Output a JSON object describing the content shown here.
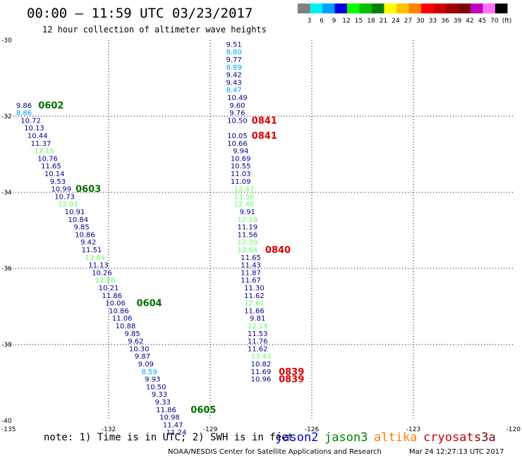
{
  "header": {
    "title": "00:00 – 11:59 UTC 03/23/2017",
    "subtitle": "12 hour collection of altimeter wave heights"
  },
  "legend": {
    "colors": [
      "#808080",
      "#00f0f0",
      "#00a0ff",
      "#0000e0",
      "#00ff00",
      "#00c000",
      "#008000",
      "#ffff00",
      "#ffc000",
      "#ff8000",
      "#ff0000",
      "#d00000",
      "#a00000",
      "#800000",
      "#c000c0",
      "#ff70ff",
      "#000000"
    ],
    "labels": [
      "3",
      "6",
      "9",
      "12",
      "15",
      "18",
      "21",
      "24",
      "27",
      "30",
      "33",
      "36",
      "39",
      "42",
      "45",
      "70",
      "(ft)"
    ]
  },
  "note": "note: 1) Time is in UTC; 2) SWH is in feet",
  "satellites": [
    {
      "name": "jason2",
      "color": "#0000cc"
    },
    {
      "name": "jason3",
      "color": "#008000"
    },
    {
      "name": "altika",
      "color": "#ff8000"
    },
    {
      "name": "cryosat",
      "color": "#cc0000"
    },
    {
      "name": "s3a",
      "color": "#800000"
    }
  ],
  "footer": {
    "center": "NOAA/NESDIS Center for Satellite Applications and Research",
    "timestamp": "Mar 24 12:27:13 UTC 2017"
  },
  "chart_data": {
    "type": "scatter",
    "title": "00:00 – 11:59 UTC 03/23/2017",
    "subtitle": "12 hour collection of altimeter wave heights",
    "xlim": [
      -135,
      -120
    ],
    "ylim": [
      -40,
      -30
    ],
    "xticks": [
      "-135",
      "-132",
      "-129",
      "-126",
      "-123",
      "-120"
    ],
    "yticks": [
      "-30",
      "-32",
      "-34",
      "-36",
      "-38",
      "-40"
    ],
    "grid": true,
    "tracks": [
      {
        "satellite": "jason3",
        "points": [
          {
            "lon": -134.5,
            "lat": -31.7,
            "swh": "9.86",
            "color": "#00008b"
          },
          {
            "lon": -134.5,
            "lat": -31.9,
            "swh": "8.86",
            "color": "#00a0ff"
          },
          {
            "lon": -134.3,
            "lat": -32.1,
            "swh": "10.72",
            "color": "#00008b"
          },
          {
            "lon": -134.2,
            "lat": -32.3,
            "swh": "10.13",
            "color": "#00008b"
          },
          {
            "lon": -134.1,
            "lat": -32.5,
            "swh": "10.44",
            "color": "#00008b"
          },
          {
            "lon": -134.0,
            "lat": -32.7,
            "swh": "11.37",
            "color": "#00008b"
          },
          {
            "lon": -133.9,
            "lat": -32.9,
            "swh": "12.16",
            "color": "#60ff60"
          },
          {
            "lon": -133.8,
            "lat": -33.1,
            "swh": "10.76",
            "color": "#00008b"
          },
          {
            "lon": -133.7,
            "lat": -33.3,
            "swh": "11.65",
            "color": "#00008b"
          },
          {
            "lon": -133.6,
            "lat": -33.5,
            "swh": "10.14",
            "color": "#00008b"
          },
          {
            "lon": -133.5,
            "lat": -33.7,
            "swh": "9.53",
            "color": "#00008b"
          },
          {
            "lon": -133.4,
            "lat": -33.9,
            "swh": "10.99",
            "color": "#00008b"
          },
          {
            "lon": -133.3,
            "lat": -34.1,
            "swh": "10.73",
            "color": "#00008b"
          },
          {
            "lon": -133.2,
            "lat": -34.3,
            "swh": "12.01",
            "color": "#60ff60"
          },
          {
            "lon": -133.0,
            "lat": -34.5,
            "swh": "10.91",
            "color": "#00008b"
          },
          {
            "lon": -132.9,
            "lat": -34.7,
            "swh": "10.84",
            "color": "#00008b"
          },
          {
            "lon": -132.8,
            "lat": -34.9,
            "swh": "9.85",
            "color": "#00008b"
          },
          {
            "lon": -132.7,
            "lat": -35.1,
            "swh": "10.86",
            "color": "#00008b"
          },
          {
            "lon": -132.6,
            "lat": -35.3,
            "swh": "9.42",
            "color": "#00008b"
          },
          {
            "lon": -132.5,
            "lat": -35.5,
            "swh": "11.51",
            "color": "#00008b"
          },
          {
            "lon": -132.4,
            "lat": -35.7,
            "swh": "13.04",
            "color": "#60ff60"
          },
          {
            "lon": -132.3,
            "lat": -35.9,
            "swh": "11.13",
            "color": "#00008b"
          },
          {
            "lon": -132.2,
            "lat": -36.1,
            "swh": "10.26",
            "color": "#00008b"
          },
          {
            "lon": -132.1,
            "lat": -36.3,
            "swh": "12.86",
            "color": "#60ff60"
          },
          {
            "lon": -132.0,
            "lat": -36.5,
            "swh": "10.21",
            "color": "#00008b"
          },
          {
            "lon": -131.9,
            "lat": -36.7,
            "swh": "11.86",
            "color": "#00008b"
          },
          {
            "lon": -131.8,
            "lat": -36.9,
            "swh": "10.06",
            "color": "#00008b"
          },
          {
            "lon": -131.7,
            "lat": -37.1,
            "swh": "10.86",
            "color": "#00008b"
          },
          {
            "lon": -131.6,
            "lat": -37.3,
            "swh": "11.06",
            "color": "#00008b"
          },
          {
            "lon": -131.5,
            "lat": -37.5,
            "swh": "10.88",
            "color": "#00008b"
          },
          {
            "lon": -131.3,
            "lat": -37.7,
            "swh": "9.85",
            "color": "#00008b"
          },
          {
            "lon": -131.2,
            "lat": -37.9,
            "swh": "9.62",
            "color": "#00008b"
          },
          {
            "lon": -131.1,
            "lat": -38.1,
            "swh": "10.30",
            "color": "#00008b"
          },
          {
            "lon": -131.0,
            "lat": -38.3,
            "swh": "9.87",
            "color": "#00008b"
          },
          {
            "lon": -130.9,
            "lat": -38.5,
            "swh": "9.09",
            "color": "#00008b"
          },
          {
            "lon": -130.8,
            "lat": -38.7,
            "swh": "8.59",
            "color": "#00a0ff"
          },
          {
            "lon": -130.7,
            "lat": -38.9,
            "swh": "9.93",
            "color": "#00008b"
          },
          {
            "lon": -130.6,
            "lat": -39.1,
            "swh": "10.50",
            "color": "#00008b"
          },
          {
            "lon": -130.5,
            "lat": -39.3,
            "swh": "9.33",
            "color": "#00008b"
          },
          {
            "lon": -130.4,
            "lat": -39.5,
            "swh": "9.33",
            "color": "#00008b"
          },
          {
            "lon": -130.3,
            "lat": -39.7,
            "swh": "11.86",
            "color": "#00008b"
          },
          {
            "lon": -130.2,
            "lat": -39.9,
            "swh": "10.98",
            "color": "#00008b"
          },
          {
            "lon": -130.1,
            "lat": -40.1,
            "swh": "11.47",
            "color": "#00008b"
          },
          {
            "lon": -130.0,
            "lat": -40.3,
            "swh": "11.24",
            "color": "#00008b"
          }
        ]
      },
      {
        "satellite": "cryosat",
        "points": [
          {
            "lon": -128.3,
            "lat": -30.1,
            "swh": "9.51",
            "color": "#00008b"
          },
          {
            "lon": -128.3,
            "lat": -30.3,
            "swh": "8.80",
            "color": "#00a0ff"
          },
          {
            "lon": -128.3,
            "lat": -30.5,
            "swh": "9.77",
            "color": "#00008b"
          },
          {
            "lon": -128.3,
            "lat": -30.7,
            "swh": "8.89",
            "color": "#00a0ff"
          },
          {
            "lon": -128.3,
            "lat": -30.9,
            "swh": "9.42",
            "color": "#00008b"
          },
          {
            "lon": -128.3,
            "lat": -31.1,
            "swh": "9.43",
            "color": "#00008b"
          },
          {
            "lon": -128.3,
            "lat": -31.3,
            "swh": "8.47",
            "color": "#00a0ff"
          },
          {
            "lon": -128.2,
            "lat": -31.5,
            "swh": "10.49",
            "color": "#00008b"
          },
          {
            "lon": -128.2,
            "lat": -31.7,
            "swh": "9.60",
            "color": "#00008b"
          },
          {
            "lon": -128.2,
            "lat": -31.9,
            "swh": "9.76",
            "color": "#00008b"
          },
          {
            "lon": -128.2,
            "lat": -32.1,
            "swh": "10.50",
            "color": "#00008b"
          },
          {
            "lon": -128.2,
            "lat": -32.5,
            "swh": "10.05",
            "color": "#00008b"
          },
          {
            "lon": -128.2,
            "lat": -32.7,
            "swh": "10.66",
            "color": "#00008b"
          },
          {
            "lon": -128.1,
            "lat": -32.9,
            "swh": "9.94",
            "color": "#00008b"
          },
          {
            "lon": -128.1,
            "lat": -33.1,
            "swh": "10.69",
            "color": "#00008b"
          },
          {
            "lon": -128.1,
            "lat": -33.3,
            "swh": "10.55",
            "color": "#00008b"
          },
          {
            "lon": -128.1,
            "lat": -33.5,
            "swh": "11.03",
            "color": "#00008b"
          },
          {
            "lon": -128.1,
            "lat": -33.7,
            "swh": "11.09",
            "color": "#00008b"
          },
          {
            "lon": -128.0,
            "lat": -33.9,
            "swh": "12.47",
            "color": "#60ff60"
          },
          {
            "lon": -128.0,
            "lat": -34.1,
            "swh": "13.56",
            "color": "#60ff60"
          },
          {
            "lon": -128.0,
            "lat": -34.3,
            "swh": "12.46",
            "color": "#60ff60"
          },
          {
            "lon": -127.9,
            "lat": -34.5,
            "swh": "9.91",
            "color": "#00008b"
          },
          {
            "lon": -127.9,
            "lat": -34.7,
            "swh": "12.18",
            "color": "#60ff60"
          },
          {
            "lon": -127.9,
            "lat": -34.9,
            "swh": "11.19",
            "color": "#00008b"
          },
          {
            "lon": -127.9,
            "lat": -35.1,
            "swh": "11.56",
            "color": "#00008b"
          },
          {
            "lon": -127.9,
            "lat": -35.3,
            "swh": "12.39",
            "color": "#60ff60"
          },
          {
            "lon": -127.9,
            "lat": -35.5,
            "swh": "13.64",
            "color": "#60ff60"
          },
          {
            "lon": -127.8,
            "lat": -35.7,
            "swh": "11.65",
            "color": "#00008b"
          },
          {
            "lon": -127.8,
            "lat": -35.9,
            "swh": "11.43",
            "color": "#00008b"
          },
          {
            "lon": -127.8,
            "lat": -36.1,
            "swh": "11.87",
            "color": "#00008b"
          },
          {
            "lon": -127.8,
            "lat": -36.3,
            "swh": "11.67",
            "color": "#00008b"
          },
          {
            "lon": -127.7,
            "lat": -36.5,
            "swh": "11.30",
            "color": "#00008b"
          },
          {
            "lon": -127.7,
            "lat": -36.7,
            "swh": "11.62",
            "color": "#00008b"
          },
          {
            "lon": -127.7,
            "lat": -36.9,
            "swh": "12.61",
            "color": "#60ff60"
          },
          {
            "lon": -127.7,
            "lat": -37.1,
            "swh": "11.66",
            "color": "#00008b"
          },
          {
            "lon": -127.6,
            "lat": -37.3,
            "swh": "9.81",
            "color": "#00008b"
          },
          {
            "lon": -127.6,
            "lat": -37.5,
            "swh": "12.14",
            "color": "#60ff60"
          },
          {
            "lon": -127.6,
            "lat": -37.7,
            "swh": "11.53",
            "color": "#00008b"
          },
          {
            "lon": -127.6,
            "lat": -37.9,
            "swh": "11.76",
            "color": "#00008b"
          },
          {
            "lon": -127.6,
            "lat": -38.1,
            "swh": "11.62",
            "color": "#00008b"
          },
          {
            "lon": -127.5,
            "lat": -38.3,
            "swh": "13.43",
            "color": "#60ff60"
          },
          {
            "lon": -127.5,
            "lat": -38.5,
            "swh": "10.82",
            "color": "#00008b"
          },
          {
            "lon": -127.5,
            "lat": -38.7,
            "swh": "11.69",
            "color": "#00008b"
          },
          {
            "lon": -127.5,
            "lat": -38.9,
            "swh": "10.96",
            "color": "#00008b"
          }
        ]
      }
    ],
    "time_labels": [
      {
        "text": "0602",
        "lon": -133.7,
        "lat": -31.7,
        "color": "#007000"
      },
      {
        "text": "0603",
        "lon": -132.6,
        "lat": -33.9,
        "color": "#007000"
      },
      {
        "text": "0604",
        "lon": -130.8,
        "lat": -36.9,
        "color": "#007000"
      },
      {
        "text": "0605",
        "lon": -129.2,
        "lat": -39.7,
        "color": "#007000"
      },
      {
        "text": "0841",
        "lon": -127.4,
        "lat": -32.1,
        "color": "#dd0000"
      },
      {
        "text": "0841",
        "lon": -127.4,
        "lat": -32.5,
        "color": "#dd0000"
      },
      {
        "text": "0840",
        "lon": -127.0,
        "lat": -35.5,
        "color": "#dd0000"
      },
      {
        "text": "0839",
        "lon": -126.6,
        "lat": -38.7,
        "color": "#dd0000"
      },
      {
        "text": "0839",
        "lon": -126.6,
        "lat": -38.9,
        "color": "#dd0000"
      }
    ]
  }
}
